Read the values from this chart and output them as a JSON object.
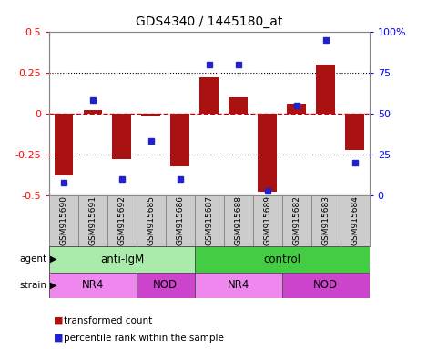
{
  "title": "GDS4340 / 1445180_at",
  "samples": [
    "GSM915690",
    "GSM915691",
    "GSM915692",
    "GSM915685",
    "GSM915686",
    "GSM915687",
    "GSM915688",
    "GSM915689",
    "GSM915682",
    "GSM915683",
    "GSM915684"
  ],
  "transformed_count": [
    -0.38,
    0.02,
    -0.28,
    -0.02,
    -0.32,
    0.22,
    0.1,
    -0.48,
    0.06,
    0.3,
    -0.22
  ],
  "percentile_rank": [
    8,
    58,
    10,
    33,
    10,
    80,
    80,
    3,
    55,
    95,
    20
  ],
  "ylim_left": [
    -0.5,
    0.5
  ],
  "ylim_right": [
    0,
    100
  ],
  "yticks_left": [
    -0.5,
    -0.25,
    0,
    0.25,
    0.5
  ],
  "yticks_right": [
    0,
    25,
    50,
    75,
    100
  ],
  "bar_color": "#AA1111",
  "dot_color": "#2222CC",
  "zero_line_color": "#CC0000",
  "dotted_line_color": "#000000",
  "agent_labels": [
    {
      "label": "anti-IgM",
      "start": 0,
      "end": 5
    },
    {
      "label": "control",
      "start": 5,
      "end": 11
    }
  ],
  "agent_color_anti": "#AAEAAA",
  "agent_color_ctrl": "#44CC44",
  "strain_labels": [
    {
      "label": "NR4",
      "start": 0,
      "end": 3
    },
    {
      "label": "NOD",
      "start": 3,
      "end": 5
    },
    {
      "label": "NR4",
      "start": 5,
      "end": 8
    },
    {
      "label": "NOD",
      "start": 8,
      "end": 11
    }
  ],
  "strain_color_NR4": "#EE88EE",
  "strain_color_NOD": "#CC44CC",
  "legend_red": "transformed count",
  "legend_blue": "percentile rank within the sample",
  "tick_bg_color": "#CCCCCC",
  "tick_border_color": "#888888"
}
